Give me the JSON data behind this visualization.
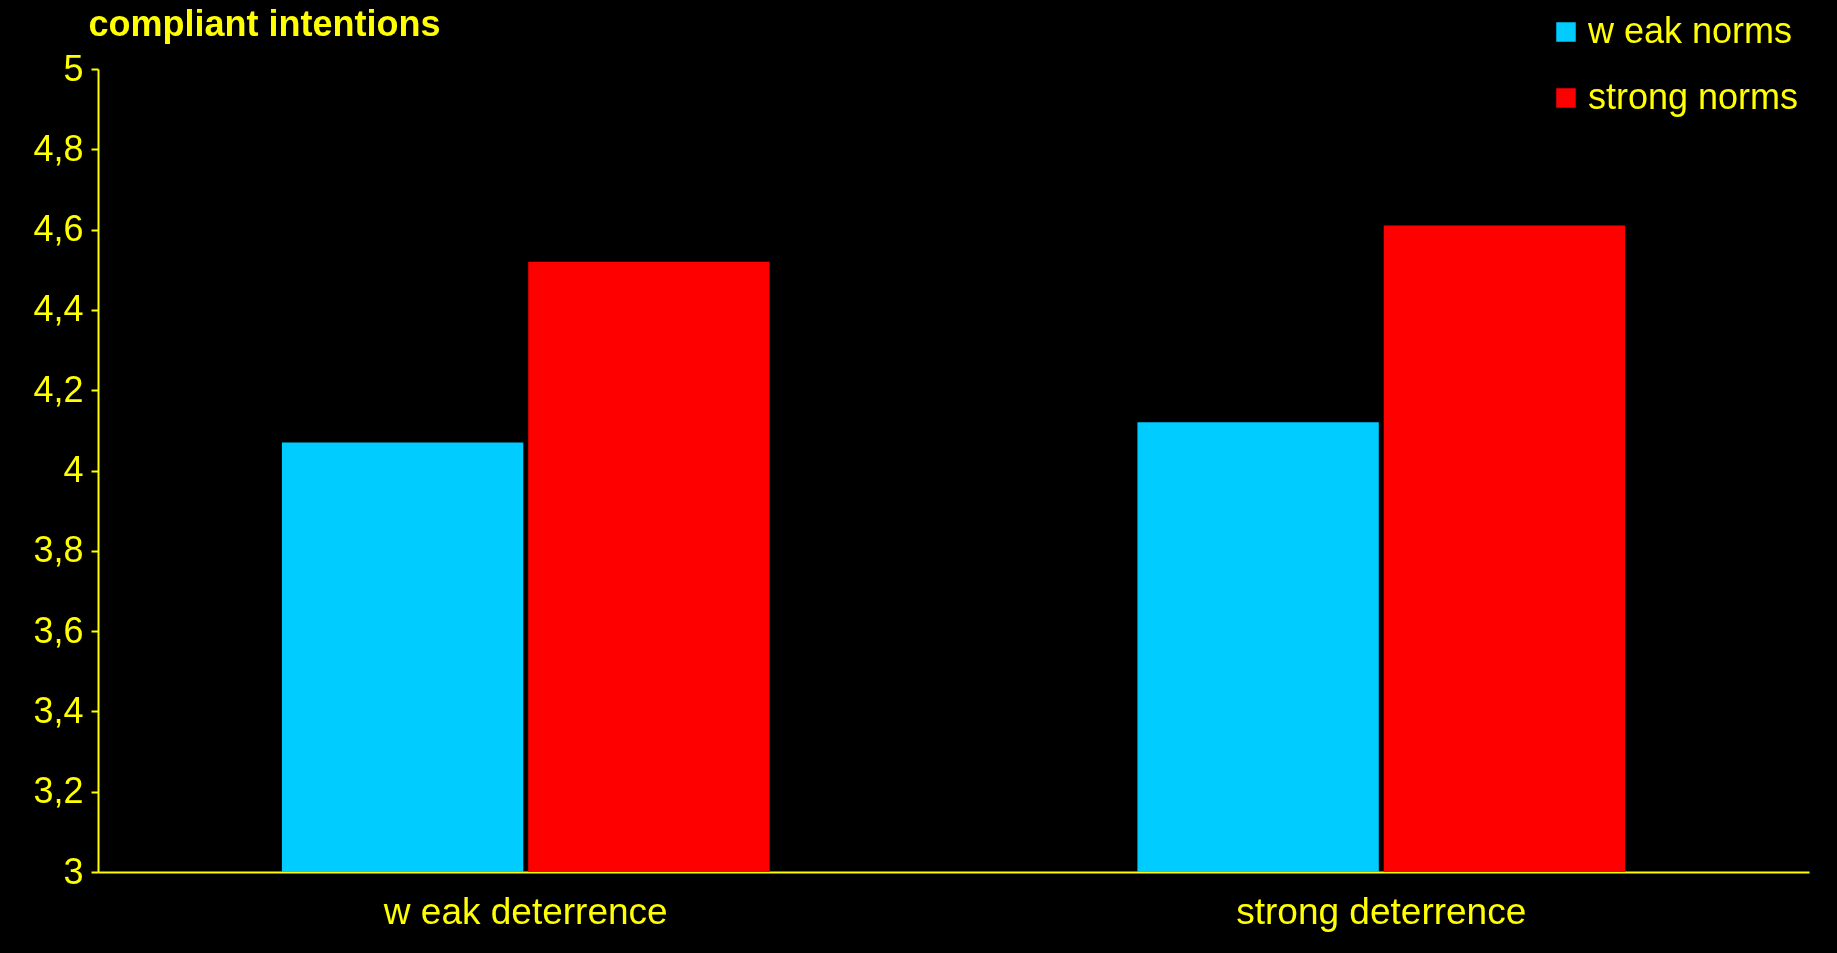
{
  "chart_data": {
    "type": "bar",
    "ylabel": "compliant intentions",
    "categories": [
      "w eak deterrence",
      "strong deterrence"
    ],
    "series": [
      {
        "name": "w eak norms",
        "color": "#00ccff",
        "values": [
          4.07,
          4.12
        ]
      },
      {
        "name": "strong norms",
        "color": "#ff0000",
        "values": [
          4.52,
          4.61
        ]
      }
    ],
    "ylim": [
      3,
      5
    ],
    "yticks": [
      3,
      {
        "value": 3.2,
        "label": "3,2"
      },
      {
        "value": 3.4,
        "label": "3,4"
      },
      {
        "value": 3.6,
        "label": "3,6"
      },
      {
        "value": 3.8,
        "label": "3,8"
      },
      4,
      {
        "value": 4.2,
        "label": "4,2"
      },
      {
        "value": 4.4,
        "label": "4,4"
      },
      {
        "value": 4.6,
        "label": "4,6"
      },
      {
        "value": 4.8,
        "label": "4,8"
      },
      5
    ],
    "grid": false,
    "legend": "top right"
  }
}
